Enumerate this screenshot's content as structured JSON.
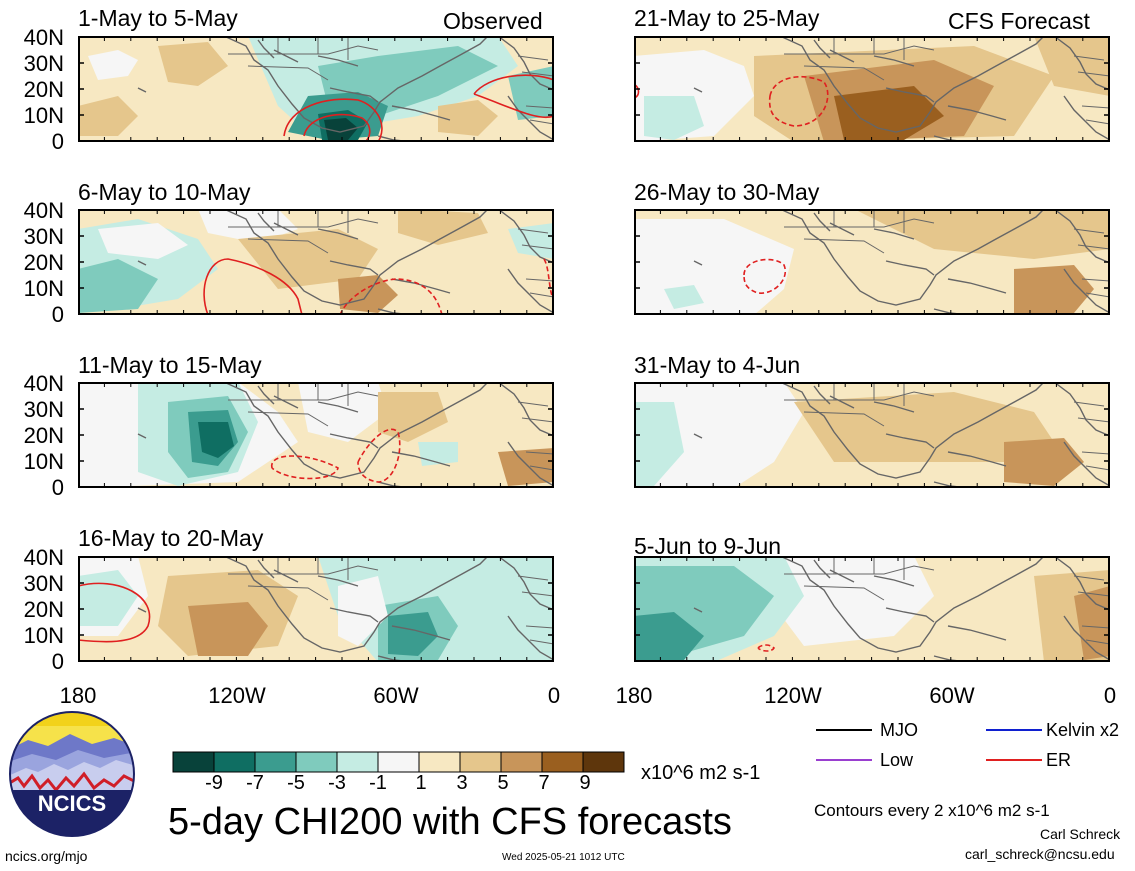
{
  "colors": {
    "c_m9": "#08423a",
    "c_m7": "#0f6e62",
    "c_m5": "#3b9c8f",
    "c_m3": "#7fcbbd",
    "c_m1": "#c5ece3",
    "c_0": "#f6f6f6",
    "c_p1": "#f7e8c2",
    "c_p3": "#e5c68c",
    "c_p5": "#c8955a",
    "c_p7": "#9a5f1f",
    "c_p9": "#5e360c",
    "er": "#e02020",
    "mjo": "#000000",
    "low": "#9a3fd0",
    "kelvin": "#1020d0",
    "land": "#666666"
  },
  "panels": [
    {
      "title": "1-May to 5-May",
      "tag": "Observed"
    },
    {
      "title": "21-May to 25-May",
      "tag": "CFS Forecast"
    },
    {
      "title": "6-May to 10-May",
      "tag": ""
    },
    {
      "title": "26-May to 30-May",
      "tag": ""
    },
    {
      "title": "11-May to 15-May",
      "tag": ""
    },
    {
      "title": "31-May to 4-Jun",
      "tag": ""
    },
    {
      "title": "16-May to 20-May",
      "tag": ""
    },
    {
      "title": "5-Jun to 9-Jun",
      "tag": ""
    }
  ],
  "lat_labels": [
    "40N",
    "30N",
    "20N",
    "10N",
    "0"
  ],
  "lon_labels": [
    "180",
    "120W",
    "60W",
    "0"
  ],
  "colorbar": {
    "labels": [
      "-9",
      "-7",
      "-5",
      "-3",
      "-1",
      "1",
      "3",
      "5",
      "7",
      "9"
    ],
    "units": "x10^6 m2 s-1"
  },
  "legend": {
    "mjo": "MJO",
    "kelvin": "Kelvin x2",
    "low": "Low",
    "er": "ER"
  },
  "main_title": "5-day CHI200 with CFS forecasts",
  "contour_note": "Contours every 2 x10^6 m2 s-1",
  "author": "Carl Schreck",
  "email": "carl_schreck@ncsu.edu",
  "site": "ncics.org/mjo",
  "timestamp": "Wed 2025-05-21 1012 UTC",
  "logo_text": "NCICS"
}
